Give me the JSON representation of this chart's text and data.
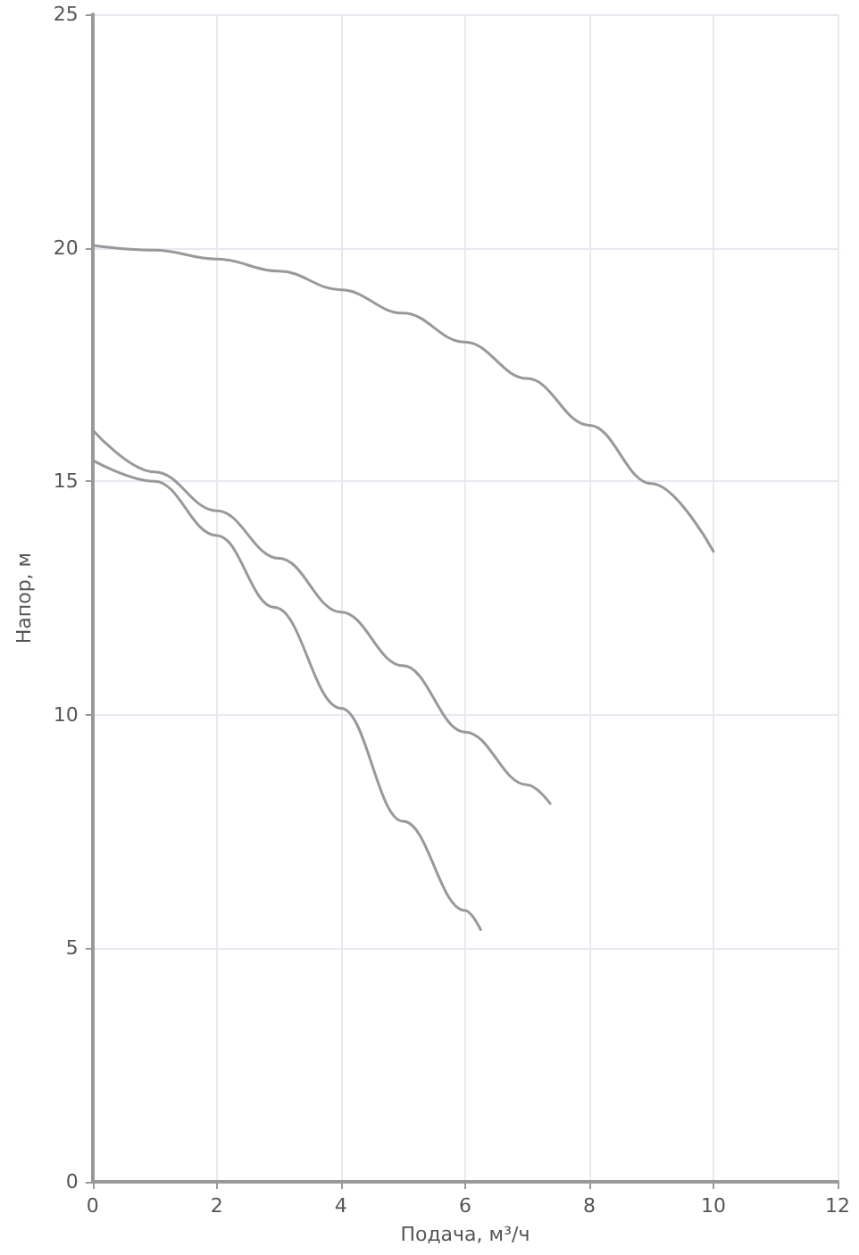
{
  "chart_data": {
    "type": "line",
    "xlabel": "Подача, м³/ч",
    "ylabel": "Напор, м",
    "xlim": [
      0,
      12
    ],
    "xticks": [
      0,
      2,
      4,
      6,
      8,
      10,
      12
    ],
    "ylim": [
      0,
      25
    ],
    "yticks": [
      0,
      5,
      10,
      15,
      20,
      25
    ],
    "grid": true,
    "marker": "none",
    "line_style": "solid",
    "series": [
      {
        "color": "#999999",
        "x": [
          0,
          1,
          2,
          3,
          4,
          5,
          6,
          7,
          8,
          9,
          10
        ],
        "values": [
          20.05,
          19.95,
          19.76,
          19.5,
          19.1,
          18.6,
          17.98,
          17.2,
          16.2,
          14.95,
          13.5
        ]
      },
      {
        "color": "#999999",
        "x": [
          0,
          1,
          2,
          3,
          4,
          5,
          6,
          7,
          7.37
        ],
        "values": [
          16.1,
          15.2,
          14.37,
          13.35,
          12.2,
          11.05,
          9.63,
          8.5,
          8.1
        ]
      },
      {
        "color": "#999999",
        "x": [
          0,
          1,
          2,
          2.93,
          4,
          5,
          6,
          6.25
        ],
        "values": [
          15.45,
          15.0,
          13.84,
          12.3,
          10.14,
          7.72,
          5.81,
          5.4
        ]
      }
    ]
  }
}
